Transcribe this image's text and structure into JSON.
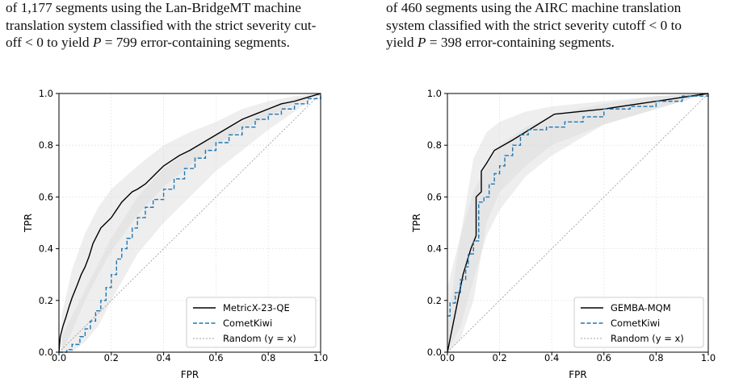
{
  "captions": [
    {
      "lines": [
        {
          "pre": "of 1,177 segments using the Lan-BridgeMT machine",
          "sym": "",
          "post": ""
        },
        {
          "pre": "translation system classified with the strict severity cut-",
          "sym": "",
          "post": ""
        },
        {
          "pre": "off < 0 to yield ",
          "sym": "P",
          "post": " = 799 error-containing segments."
        }
      ]
    },
    {
      "lines": [
        {
          "pre": "of 460 segments using the AIRC machine translation",
          "sym": "",
          "post": ""
        },
        {
          "pre": "system classified with the strict severity cutoff < 0 to",
          "sym": "",
          "post": ""
        },
        {
          "pre": "yield ",
          "sym": "P",
          "post": " = 398 error-containing segments."
        }
      ]
    }
  ],
  "chart_data": [
    {
      "type": "line",
      "title": "",
      "xlabel": "FPR",
      "ylabel": "TPR",
      "xlim": [
        0,
        1
      ],
      "ylim": [
        0,
        1
      ],
      "x_ticks": [
        "0.0",
        "0.2",
        "0.4",
        "0.6",
        "0.8",
        "1.0"
      ],
      "y_ticks": [
        "0.0",
        "0.2",
        "0.4",
        "0.6",
        "0.8",
        "1.0"
      ],
      "grid": true,
      "legend_position": "lower-right",
      "series": [
        {
          "name": "MetricX-23-QE",
          "color": "#000000",
          "style": "solid",
          "step": false,
          "band": [
            [
              0.01,
              0.14,
              0.0
            ],
            [
              0.05,
              0.32,
              0.08
            ],
            [
              0.1,
              0.46,
              0.2
            ],
            [
              0.15,
              0.56,
              0.3
            ],
            [
              0.2,
              0.63,
              0.39
            ],
            [
              0.3,
              0.72,
              0.53
            ],
            [
              0.4,
              0.8,
              0.64
            ],
            [
              0.5,
              0.85,
              0.72
            ],
            [
              0.6,
              0.89,
              0.8
            ],
            [
              0.7,
              0.94,
              0.86
            ],
            [
              0.8,
              0.97,
              0.91
            ],
            [
              0.9,
              0.99,
              0.96
            ],
            [
              1.0,
              1.0,
              1.0
            ]
          ],
          "points": [
            [
              0,
              0
            ],
            [
              0.005,
              0.06
            ],
            [
              0.015,
              0.1
            ],
            [
              0.025,
              0.13
            ],
            [
              0.04,
              0.18
            ],
            [
              0.05,
              0.21
            ],
            [
              0.07,
              0.26
            ],
            [
              0.085,
              0.3
            ],
            [
              0.1,
              0.33
            ],
            [
              0.115,
              0.37
            ],
            [
              0.13,
              0.42
            ],
            [
              0.145,
              0.45
            ],
            [
              0.16,
              0.48
            ],
            [
              0.18,
              0.5
            ],
            [
              0.2,
              0.52
            ],
            [
              0.22,
              0.55
            ],
            [
              0.24,
              0.58
            ],
            [
              0.26,
              0.6
            ],
            [
              0.28,
              0.62
            ],
            [
              0.3,
              0.63
            ],
            [
              0.33,
              0.65
            ],
            [
              0.36,
              0.68
            ],
            [
              0.38,
              0.7
            ],
            [
              0.4,
              0.72
            ],
            [
              0.43,
              0.74
            ],
            [
              0.46,
              0.76
            ],
            [
              0.5,
              0.78
            ],
            [
              0.55,
              0.81
            ],
            [
              0.6,
              0.84
            ],
            [
              0.65,
              0.87
            ],
            [
              0.7,
              0.9
            ],
            [
              0.75,
              0.92
            ],
            [
              0.8,
              0.94
            ],
            [
              0.85,
              0.96
            ],
            [
              0.9,
              0.97
            ],
            [
              0.95,
              0.985
            ],
            [
              1.0,
              1.0
            ]
          ]
        },
        {
          "name": "CometKiwi",
          "color": "#1f77b4",
          "style": "dashed",
          "step": true,
          "band": [
            [
              0.01,
              0.06,
              0.0
            ],
            [
              0.05,
              0.14,
              0.0
            ],
            [
              0.1,
              0.24,
              0.04
            ],
            [
              0.15,
              0.34,
              0.1
            ],
            [
              0.2,
              0.44,
              0.2
            ],
            [
              0.3,
              0.6,
              0.38
            ],
            [
              0.4,
              0.71,
              0.5
            ],
            [
              0.5,
              0.78,
              0.6
            ],
            [
              0.6,
              0.84,
              0.7
            ],
            [
              0.7,
              0.89,
              0.78
            ],
            [
              0.8,
              0.94,
              0.86
            ],
            [
              0.9,
              0.98,
              0.93
            ],
            [
              1.0,
              1.0,
              1.0
            ]
          ],
          "points": [
            [
              0,
              0
            ],
            [
              0.03,
              0.01
            ],
            [
              0.05,
              0.03
            ],
            [
              0.08,
              0.06
            ],
            [
              0.1,
              0.09
            ],
            [
              0.12,
              0.12
            ],
            [
              0.14,
              0.16
            ],
            [
              0.16,
              0.2
            ],
            [
              0.18,
              0.25
            ],
            [
              0.2,
              0.3
            ],
            [
              0.22,
              0.36
            ],
            [
              0.24,
              0.4
            ],
            [
              0.26,
              0.44
            ],
            [
              0.28,
              0.48
            ],
            [
              0.3,
              0.52
            ],
            [
              0.33,
              0.56
            ],
            [
              0.36,
              0.59
            ],
            [
              0.4,
              0.63
            ],
            [
              0.44,
              0.67
            ],
            [
              0.48,
              0.71
            ],
            [
              0.52,
              0.75
            ],
            [
              0.56,
              0.78
            ],
            [
              0.6,
              0.81
            ],
            [
              0.65,
              0.84
            ],
            [
              0.7,
              0.87
            ],
            [
              0.75,
              0.9
            ],
            [
              0.8,
              0.92
            ],
            [
              0.85,
              0.94
            ],
            [
              0.9,
              0.96
            ],
            [
              0.95,
              0.98
            ],
            [
              1.0,
              1.0
            ]
          ]
        },
        {
          "name": "Random (y = x)",
          "color": "#888888",
          "style": "dotted",
          "step": false,
          "points": [
            [
              0,
              0
            ],
            [
              1,
              1
            ]
          ]
        }
      ]
    },
    {
      "type": "line",
      "title": "",
      "xlabel": "FPR",
      "ylabel": "TPR",
      "xlim": [
        0,
        1
      ],
      "ylim": [
        0,
        1
      ],
      "x_ticks": [
        "0.0",
        "0.2",
        "0.4",
        "0.6",
        "0.8",
        "1.0"
      ],
      "y_ticks": [
        "0.0",
        "0.2",
        "0.4",
        "0.6",
        "0.8",
        "1.0"
      ],
      "grid": true,
      "legend_position": "lower-right",
      "series": [
        {
          "name": "GEMBA-MQM",
          "color": "#000000",
          "style": "solid",
          "step": false,
          "band": [
            [
              0.0,
              0.1,
              0.0
            ],
            [
              0.05,
              0.45,
              0.05
            ],
            [
              0.1,
              0.75,
              0.2
            ],
            [
              0.15,
              0.85,
              0.5
            ],
            [
              0.2,
              0.89,
              0.62
            ],
            [
              0.3,
              0.93,
              0.72
            ],
            [
              0.4,
              0.95,
              0.8
            ],
            [
              0.6,
              0.97,
              0.88
            ],
            [
              0.8,
              0.99,
              0.94
            ],
            [
              1.0,
              1.0,
              1.0
            ]
          ],
          "points": [
            [
              0,
              0
            ],
            [
              0.02,
              0.1
            ],
            [
              0.04,
              0.2
            ],
            [
              0.06,
              0.3
            ],
            [
              0.09,
              0.4
            ],
            [
              0.11,
              0.45
            ],
            [
              0.11,
              0.6
            ],
            [
              0.13,
              0.62
            ],
            [
              0.13,
              0.7
            ],
            [
              0.15,
              0.73
            ],
            [
              0.18,
              0.78
            ],
            [
              0.25,
              0.82
            ],
            [
              0.33,
              0.87
            ],
            [
              0.41,
              0.92
            ],
            [
              0.6,
              0.94
            ],
            [
              0.8,
              0.97
            ],
            [
              1.0,
              1.0
            ]
          ]
        },
        {
          "name": "CometKiwi",
          "color": "#1f77b4",
          "style": "dashed",
          "step": true,
          "band": [
            [
              0.0,
              0.25,
              0.0
            ],
            [
              0.05,
              0.45,
              0.1
            ],
            [
              0.1,
              0.62,
              0.28
            ],
            [
              0.15,
              0.72,
              0.45
            ],
            [
              0.2,
              0.8,
              0.55
            ],
            [
              0.3,
              0.87,
              0.68
            ],
            [
              0.4,
              0.91,
              0.76
            ],
            [
              0.5,
              0.94,
              0.82
            ],
            [
              0.6,
              0.96,
              0.88
            ],
            [
              0.8,
              0.99,
              0.94
            ],
            [
              1.0,
              1.0,
              1.0
            ]
          ],
          "points": [
            [
              0,
              0.14
            ],
            [
              0.01,
              0.14
            ],
            [
              0.01,
              0.19
            ],
            [
              0.03,
              0.19
            ],
            [
              0.03,
              0.23
            ],
            [
              0.05,
              0.23
            ],
            [
              0.05,
              0.28
            ],
            [
              0.07,
              0.28
            ],
            [
              0.07,
              0.33
            ],
            [
              0.08,
              0.33
            ],
            [
              0.08,
              0.38
            ],
            [
              0.1,
              0.38
            ],
            [
              0.1,
              0.43
            ],
            [
              0.12,
              0.43
            ],
            [
              0.12,
              0.58
            ],
            [
              0.14,
              0.58
            ],
            [
              0.14,
              0.6
            ],
            [
              0.16,
              0.6
            ],
            [
              0.16,
              0.65
            ],
            [
              0.18,
              0.65
            ],
            [
              0.18,
              0.69
            ],
            [
              0.2,
              0.69
            ],
            [
              0.2,
              0.72
            ],
            [
              0.22,
              0.72
            ],
            [
              0.22,
              0.76
            ],
            [
              0.25,
              0.76
            ],
            [
              0.25,
              0.8
            ],
            [
              0.28,
              0.8
            ],
            [
              0.28,
              0.84
            ],
            [
              0.31,
              0.84
            ],
            [
              0.31,
              0.86
            ],
            [
              0.38,
              0.86
            ],
            [
              0.38,
              0.87
            ],
            [
              0.45,
              0.87
            ],
            [
              0.45,
              0.89
            ],
            [
              0.52,
              0.89
            ],
            [
              0.52,
              0.91
            ],
            [
              0.6,
              0.91
            ],
            [
              0.6,
              0.94
            ],
            [
              0.7,
              0.94
            ],
            [
              0.7,
              0.95
            ],
            [
              0.8,
              0.95
            ],
            [
              0.8,
              0.97
            ],
            [
              0.9,
              0.97
            ],
            [
              0.9,
              0.99
            ],
            [
              1.0,
              0.99
            ],
            [
              1.0,
              1.0
            ]
          ]
        },
        {
          "name": "Random (y = x)",
          "color": "#888888",
          "style": "dotted",
          "step": false,
          "points": [
            [
              0,
              0
            ],
            [
              1,
              1
            ]
          ]
        }
      ]
    }
  ]
}
